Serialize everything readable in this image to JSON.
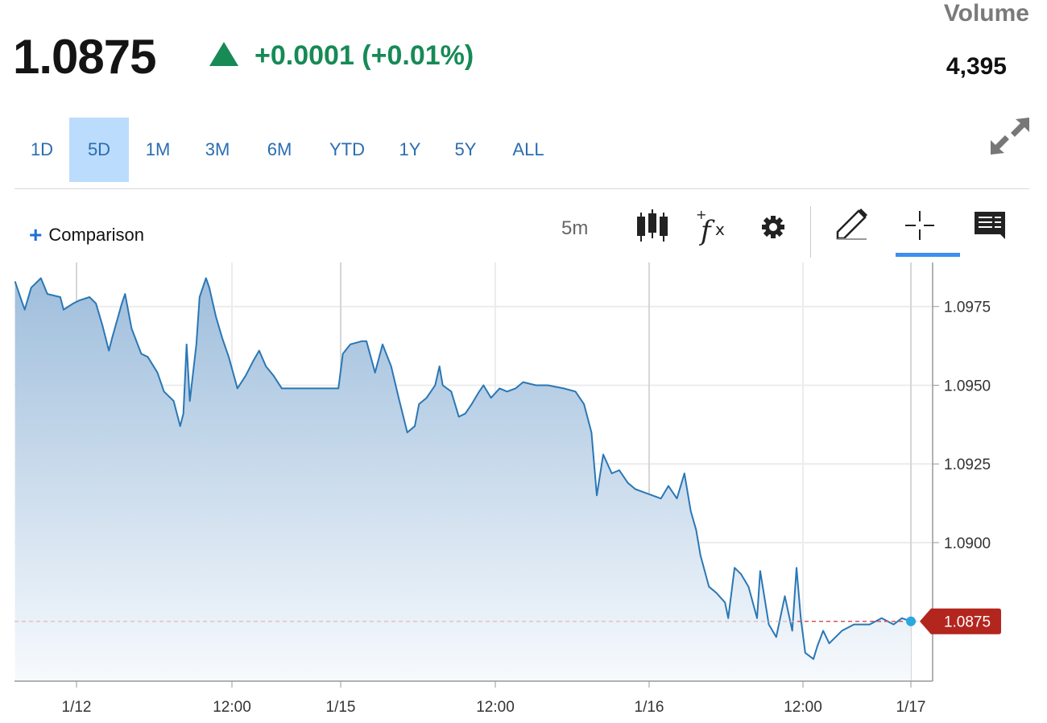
{
  "quote": {
    "price": "1.0875",
    "direction": "up",
    "change": "+0.0001 (+0.01%)",
    "change_color": "#178a56",
    "volume_label": "Volume",
    "volume_value": "4,395"
  },
  "ranges": [
    {
      "label": "1D",
      "active": false
    },
    {
      "label": "5D",
      "active": true
    },
    {
      "label": "1M",
      "active": false
    },
    {
      "label": "3M",
      "active": false
    },
    {
      "label": "6M",
      "active": false
    },
    {
      "label": "YTD",
      "active": false
    },
    {
      "label": "1Y",
      "active": false
    },
    {
      "label": "5Y",
      "active": false
    },
    {
      "label": "ALL",
      "active": false
    }
  ],
  "toolbar": {
    "comparison_label": "Comparison",
    "interval": "5m",
    "icons": [
      "candlestick-icon",
      "function-icon",
      "gear-icon",
      "pencil-icon",
      "crosshair-icon",
      "comment-icon",
      "expand-icon"
    ],
    "active_tool": "crosshair-icon"
  },
  "chart_data": {
    "type": "area",
    "line_color": "#2a77b5",
    "grid": true,
    "ylim": [
      1.0856,
      1.0989
    ],
    "yticks": [
      "1.0975",
      "1.0950",
      "1.0925",
      "1.0900"
    ],
    "xticks": [
      {
        "label": "1/12",
        "time": "1/12 00:00"
      },
      {
        "label": "12:00",
        "time": "1/12 12:00"
      },
      {
        "label": "1/15",
        "time": "1/15 00:00"
      },
      {
        "label": "12:00",
        "time": "1/15 12:00"
      },
      {
        "label": "1/16",
        "time": "1/16 00:00"
      },
      {
        "label": "12:00",
        "time": "1/16 12:00"
      },
      {
        "label": "1/17",
        "time": "1/17 00:00"
      }
    ],
    "last_value": "1.0875",
    "last_value_color": "#b3261e",
    "points": [
      [
        "1/11 19:15",
        1.0983
      ],
      [
        "1/11 19:45",
        1.0977
      ],
      [
        "1/11 20:00",
        1.0974
      ],
      [
        "1/11 20:30",
        1.0981
      ],
      [
        "1/11 21:15",
        1.0984
      ],
      [
        "1/11 21:45",
        1.0979
      ],
      [
        "1/11 22:45",
        1.0978
      ],
      [
        "1/11 23:00",
        1.0974
      ],
      [
        "1/11 23:45",
        1.0976
      ],
      [
        "1/12 00:15",
        1.0977
      ],
      [
        "1/12 01:00",
        1.0978
      ],
      [
        "1/12 01:30",
        1.0976
      ],
      [
        "1/12 02:00",
        1.0969
      ],
      [
        "1/12 02:30",
        1.0961
      ],
      [
        "1/12 02:45",
        1.0965
      ],
      [
        "1/12 03:30",
        1.0976
      ],
      [
        "1/12 03:45",
        1.0979
      ],
      [
        "1/12 04:15",
        1.0968
      ],
      [
        "1/12 05:00",
        1.096
      ],
      [
        "1/12 05:30",
        1.0959
      ],
      [
        "1/12 06:15",
        1.0954
      ],
      [
        "1/12 06:45",
        1.0948
      ],
      [
        "1/12 07:30",
        1.0945
      ],
      [
        "1/12 08:00",
        1.0937
      ],
      [
        "1/12 08:15",
        1.0941
      ],
      [
        "1/12 08:30",
        1.0963
      ],
      [
        "1/12 08:45",
        1.0945
      ],
      [
        "1/12 09:15",
        1.0963
      ],
      [
        "1/12 09:30",
        1.0978
      ],
      [
        "1/12 10:00",
        1.0984
      ],
      [
        "1/12 10:15",
        1.0981
      ],
      [
        "1/12 10:45",
        1.0972
      ],
      [
        "1/12 11:15",
        1.0965
      ],
      [
        "1/12 11:45",
        1.0959
      ],
      [
        "1/12 15:00",
        1.0949
      ],
      [
        "1/12 19:30",
        1.0953
      ],
      [
        "1/13 00:00",
        1.0958
      ],
      [
        "1/13 03:00",
        1.0961
      ],
      [
        "1/13 06:45",
        1.0956
      ],
      [
        "1/13 11:00",
        1.0953
      ],
      [
        "1/13 15:30",
        1.0949
      ],
      [
        "1/13 20:00",
        1.0949
      ],
      [
        "1/14 22:45",
        1.0949
      ],
      [
        "1/15 00:10",
        1.096
      ],
      [
        "1/15 00:45",
        1.0963
      ],
      [
        "1/15 01:40",
        1.0964
      ],
      [
        "1/15 02:00",
        1.0964
      ],
      [
        "1/15 02:40",
        1.0954
      ],
      [
        "1/15 03:15",
        1.0963
      ],
      [
        "1/15 03:55",
        1.0956
      ],
      [
        "1/15 04:30",
        1.0946
      ],
      [
        "1/15 05:10",
        1.0935
      ],
      [
        "1/15 05:45",
        1.0937
      ],
      [
        "1/15 06:05",
        1.0944
      ],
      [
        "1/15 06:40",
        1.0946
      ],
      [
        "1/15 07:20",
        1.095
      ],
      [
        "1/15 07:40",
        1.0956
      ],
      [
        "1/15 07:55",
        1.095
      ],
      [
        "1/15 08:35",
        1.0948
      ],
      [
        "1/15 09:10",
        1.094
      ],
      [
        "1/15 09:40",
        1.0941
      ],
      [
        "1/15 10:10",
        1.0944
      ],
      [
        "1/15 10:45",
        1.0948
      ],
      [
        "1/15 11:05",
        1.095
      ],
      [
        "1/15 11:40",
        1.0946
      ],
      [
        "1/15 12:20",
        1.0949
      ],
      [
        "1/15 12:55",
        1.0948
      ],
      [
        "1/15 13:35",
        1.0949
      ],
      [
        "1/15 14:10",
        1.0951
      ],
      [
        "1/15 15:10",
        1.095
      ],
      [
        "1/15 16:05",
        1.095
      ],
      [
        "1/15 17:20",
        1.0949
      ],
      [
        "1/15 18:15",
        1.0948
      ],
      [
        "1/15 18:55",
        1.0944
      ],
      [
        "1/15 19:30",
        1.0935
      ],
      [
        "1/15 19:55",
        1.0915
      ],
      [
        "1/15 20:25",
        1.0928
      ],
      [
        "1/15 21:05",
        1.0922
      ],
      [
        "1/15 21:40",
        1.0923
      ],
      [
        "1/15 22:20",
        1.0919
      ],
      [
        "1/15 22:55",
        1.0917
      ],
      [
        "1/15 23:35",
        1.0916
      ],
      [
        "1/16 00:15",
        1.0915
      ],
      [
        "1/16 00:55",
        1.0914
      ],
      [
        "1/16 01:30",
        1.0918
      ],
      [
        "1/16 02:10",
        1.0914
      ],
      [
        "1/16 02:45",
        1.0922
      ],
      [
        "1/16 03:15",
        1.091
      ],
      [
        "1/16 03:40",
        1.0904
      ],
      [
        "1/16 04:00",
        1.0896
      ],
      [
        "1/16 04:40",
        1.0886
      ],
      [
        "1/16 05:15",
        1.0884
      ],
      [
        "1/16 05:55",
        1.0881
      ],
      [
        "1/16 06:10",
        1.0876
      ],
      [
        "1/16 06:40",
        1.0892
      ],
      [
        "1/16 07:10",
        1.089
      ],
      [
        "1/16 07:45",
        1.0886
      ],
      [
        "1/16 08:25",
        1.0876
      ],
      [
        "1/16 08:40",
        1.0891
      ],
      [
        "1/16 09:20",
        1.0874
      ],
      [
        "1/16 09:55",
        1.087
      ],
      [
        "1/16 10:35",
        1.0883
      ],
      [
        "1/16 11:10",
        1.0872
      ],
      [
        "1/16 11:30",
        1.0892
      ],
      [
        "1/16 11:50",
        1.0876
      ],
      [
        "1/16 12:15",
        1.0865
      ],
      [
        "1/16 13:10",
        1.0863
      ],
      [
        "1/16 13:35",
        1.0867
      ],
      [
        "1/16 14:15",
        1.0872
      ],
      [
        "1/16 14:55",
        1.0868
      ],
      [
        "1/16 16:20",
        1.0872
      ],
      [
        "1/16 17:40",
        1.0874
      ],
      [
        "1/16 19:25",
        1.0874
      ],
      [
        "1/16 20:45",
        1.0876
      ],
      [
        "1/16 22:05",
        1.0874
      ],
      [
        "1/16 23:00",
        1.0876
      ],
      [
        "1/17 00:00",
        1.0875
      ]
    ]
  }
}
